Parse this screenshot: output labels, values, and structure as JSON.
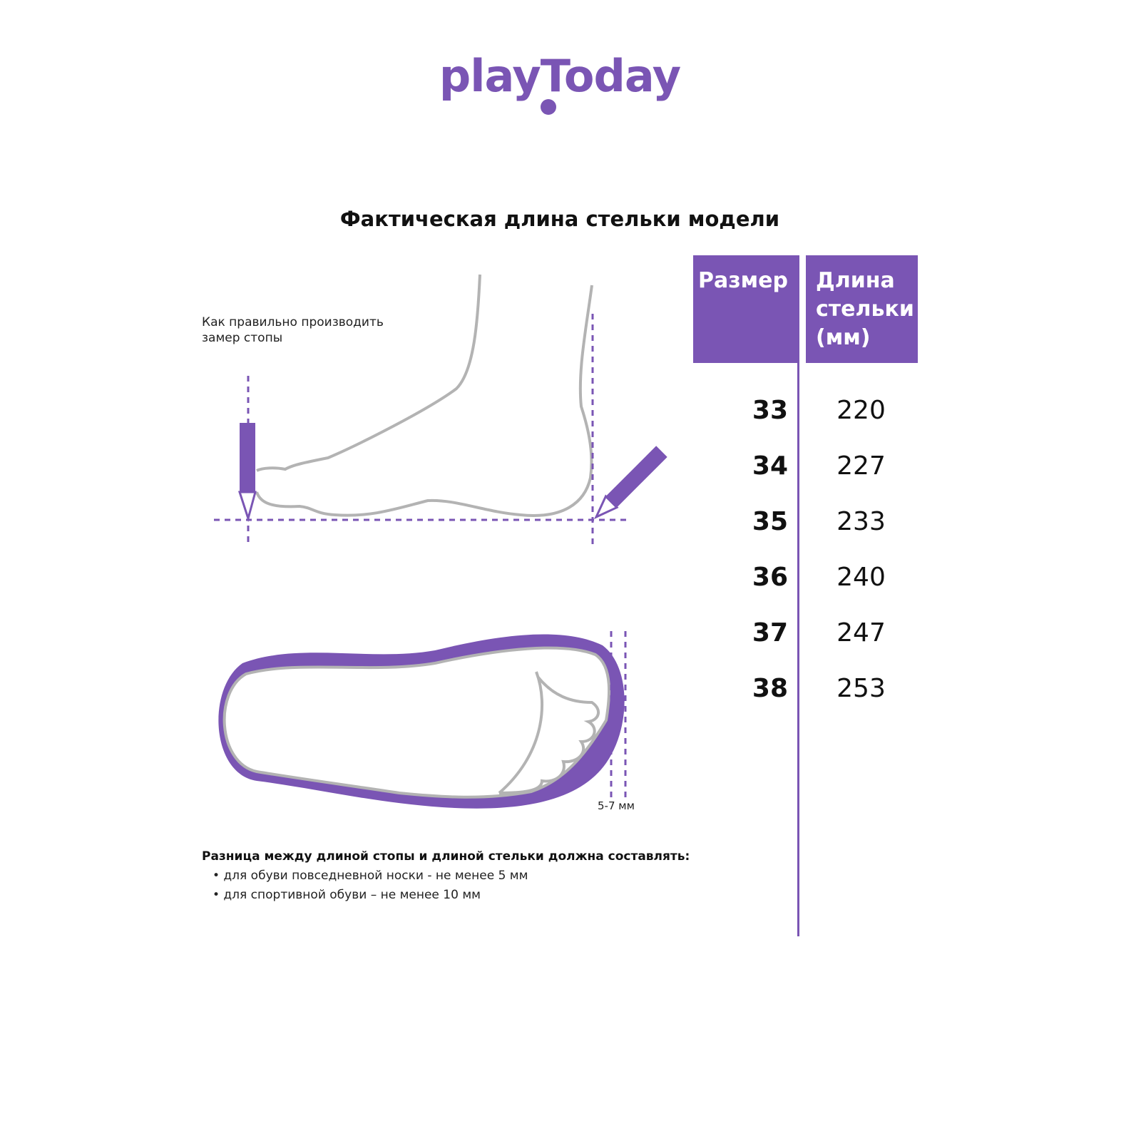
{
  "brand": {
    "logo_text": "playToday",
    "color": "#7a55b4"
  },
  "title": "Фактическая длина стельки модели",
  "instructions": {
    "line1": "Как правильно производить",
    "line2": "замер стопы"
  },
  "table": {
    "headers": [
      "Размер",
      "Длина стельки (мм)"
    ],
    "rows": [
      {
        "size": "33",
        "length": "220"
      },
      {
        "size": "34",
        "length": "227"
      },
      {
        "size": "35",
        "length": "233"
      },
      {
        "size": "36",
        "length": "240"
      },
      {
        "size": "37",
        "length": "247"
      },
      {
        "size": "38",
        "length": "253"
      }
    ]
  },
  "gap_label": "5-7 мм",
  "note": {
    "title": "Разница между длиной стопы и длиной стельки должна составлять:",
    "bullets": [
      "• для обуви повседневной носки -  не менее 5 мм",
      "• для спортивной обуви – не менее 10 мм"
    ]
  }
}
